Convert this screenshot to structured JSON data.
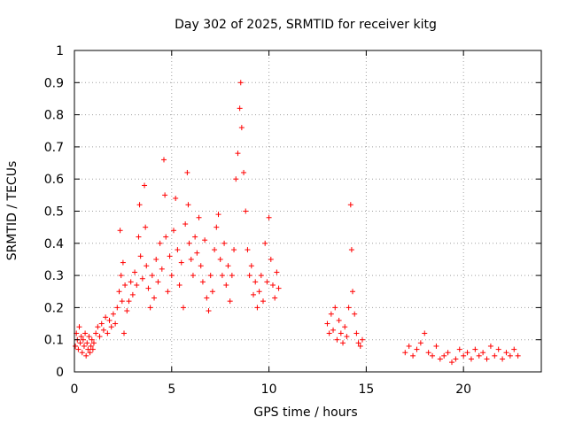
{
  "chart_data": {
    "type": "scatter",
    "title": "Day 302 of 2025, SRMTID for receiver kitg",
    "xlabel": "GPS time / hours",
    "ylabel": "SRMTID / TECUs",
    "xlim": [
      0,
      24
    ],
    "ylim": [
      0,
      1
    ],
    "xticks": [
      0,
      5,
      10,
      15,
      20
    ],
    "yticks": [
      0,
      0.1,
      0.2,
      0.3,
      0.4,
      0.5,
      0.6,
      0.7,
      0.8,
      0.9,
      1
    ],
    "xtick_labels": [
      "0",
      "5",
      "10",
      "15",
      "20"
    ],
    "ytick_labels": [
      "0",
      "0.1",
      "0.2",
      "0.3",
      "0.4",
      "0.5",
      "0.6",
      "0.7",
      "0.8",
      "0.9",
      "1"
    ],
    "grid": true,
    "marker_color": "#ff0000",
    "series": [
      {
        "name": "SRMTID",
        "points": [
          [
            0.05,
            0.08
          ],
          [
            0.1,
            0.12
          ],
          [
            0.15,
            0.1
          ],
          [
            0.2,
            0.07
          ],
          [
            0.25,
            0.14
          ],
          [
            0.3,
            0.09
          ],
          [
            0.35,
            0.11
          ],
          [
            0.4,
            0.06
          ],
          [
            0.45,
            0.1
          ],
          [
            0.5,
            0.08
          ],
          [
            0.55,
            0.12
          ],
          [
            0.6,
            0.05
          ],
          [
            0.65,
            0.09
          ],
          [
            0.7,
            0.07
          ],
          [
            0.75,
            0.11
          ],
          [
            0.8,
            0.06
          ],
          [
            0.85,
            0.08
          ],
          [
            0.9,
            0.1
          ],
          [
            0.95,
            0.07
          ],
          [
            1.0,
            0.09
          ],
          [
            1.1,
            0.12
          ],
          [
            1.2,
            0.14
          ],
          [
            1.3,
            0.11
          ],
          [
            1.4,
            0.15
          ],
          [
            1.5,
            0.13
          ],
          [
            1.6,
            0.17
          ],
          [
            1.7,
            0.12
          ],
          [
            1.8,
            0.16
          ],
          [
            1.9,
            0.14
          ],
          [
            2.0,
            0.18
          ],
          [
            2.1,
            0.15
          ],
          [
            2.2,
            0.2
          ],
          [
            2.3,
            0.25
          ],
          [
            2.35,
            0.44
          ],
          [
            2.4,
            0.3
          ],
          [
            2.45,
            0.22
          ],
          [
            2.5,
            0.34
          ],
          [
            2.55,
            0.12
          ],
          [
            2.6,
            0.27
          ],
          [
            2.7,
            0.19
          ],
          [
            2.8,
            0.22
          ],
          [
            2.9,
            0.28
          ],
          [
            3.0,
            0.24
          ],
          [
            3.1,
            0.31
          ],
          [
            3.2,
            0.27
          ],
          [
            3.3,
            0.42
          ],
          [
            3.35,
            0.52
          ],
          [
            3.4,
            0.36
          ],
          [
            3.5,
            0.29
          ],
          [
            3.6,
            0.58
          ],
          [
            3.65,
            0.45
          ],
          [
            3.7,
            0.33
          ],
          [
            3.8,
            0.26
          ],
          [
            3.9,
            0.2
          ],
          [
            4.0,
            0.3
          ],
          [
            4.1,
            0.23
          ],
          [
            4.2,
            0.35
          ],
          [
            4.3,
            0.28
          ],
          [
            4.4,
            0.4
          ],
          [
            4.5,
            0.32
          ],
          [
            4.6,
            0.66
          ],
          [
            4.65,
            0.55
          ],
          [
            4.7,
            0.42
          ],
          [
            4.8,
            0.25
          ],
          [
            4.9,
            0.36
          ],
          [
            5.0,
            0.3
          ],
          [
            5.1,
            0.44
          ],
          [
            5.2,
            0.54
          ],
          [
            5.3,
            0.38
          ],
          [
            5.4,
            0.27
          ],
          [
            5.5,
            0.34
          ],
          [
            5.6,
            0.2
          ],
          [
            5.7,
            0.46
          ],
          [
            5.8,
            0.62
          ],
          [
            5.85,
            0.52
          ],
          [
            5.9,
            0.4
          ],
          [
            6.0,
            0.35
          ],
          [
            6.1,
            0.3
          ],
          [
            6.2,
            0.42
          ],
          [
            6.3,
            0.37
          ],
          [
            6.4,
            0.48
          ],
          [
            6.5,
            0.33
          ],
          [
            6.6,
            0.28
          ],
          [
            6.7,
            0.41
          ],
          [
            6.8,
            0.23
          ],
          [
            6.9,
            0.19
          ],
          [
            7.0,
            0.3
          ],
          [
            7.1,
            0.25
          ],
          [
            7.2,
            0.38
          ],
          [
            7.3,
            0.45
          ],
          [
            7.4,
            0.49
          ],
          [
            7.5,
            0.35
          ],
          [
            7.6,
            0.3
          ],
          [
            7.7,
            0.4
          ],
          [
            7.8,
            0.27
          ],
          [
            7.9,
            0.33
          ],
          [
            8.0,
            0.22
          ],
          [
            8.1,
            0.3
          ],
          [
            8.2,
            0.38
          ],
          [
            8.3,
            0.6
          ],
          [
            8.4,
            0.68
          ],
          [
            8.5,
            0.82
          ],
          [
            8.55,
            0.9
          ],
          [
            8.6,
            0.76
          ],
          [
            8.7,
            0.62
          ],
          [
            8.8,
            0.5
          ],
          [
            8.9,
            0.38
          ],
          [
            9.0,
            0.3
          ],
          [
            9.1,
            0.33
          ],
          [
            9.2,
            0.24
          ],
          [
            9.3,
            0.28
          ],
          [
            9.4,
            0.2
          ],
          [
            9.5,
            0.25
          ],
          [
            9.6,
            0.3
          ],
          [
            9.7,
            0.22
          ],
          [
            9.8,
            0.4
          ],
          [
            9.9,
            0.28
          ],
          [
            10.0,
            0.48
          ],
          [
            10.1,
            0.35
          ],
          [
            10.2,
            0.27
          ],
          [
            10.3,
            0.23
          ],
          [
            10.4,
            0.31
          ],
          [
            10.5,
            0.26
          ],
          [
            13.0,
            0.15
          ],
          [
            13.1,
            0.12
          ],
          [
            13.2,
            0.18
          ],
          [
            13.3,
            0.13
          ],
          [
            13.4,
            0.2
          ],
          [
            13.5,
            0.1
          ],
          [
            13.6,
            0.16
          ],
          [
            13.7,
            0.12
          ],
          [
            13.8,
            0.09
          ],
          [
            13.9,
            0.14
          ],
          [
            14.0,
            0.11
          ],
          [
            14.1,
            0.2
          ],
          [
            14.2,
            0.52
          ],
          [
            14.25,
            0.38
          ],
          [
            14.3,
            0.25
          ],
          [
            14.4,
            0.18
          ],
          [
            14.5,
            0.12
          ],
          [
            14.6,
            0.09
          ],
          [
            14.7,
            0.08
          ],
          [
            14.8,
            0.1
          ],
          [
            17.0,
            0.06
          ],
          [
            17.2,
            0.08
          ],
          [
            17.4,
            0.05
          ],
          [
            17.6,
            0.07
          ],
          [
            17.8,
            0.09
          ],
          [
            18.0,
            0.12
          ],
          [
            18.2,
            0.06
          ],
          [
            18.4,
            0.05
          ],
          [
            18.6,
            0.08
          ],
          [
            18.8,
            0.04
          ],
          [
            19.0,
            0.05
          ],
          [
            19.2,
            0.06
          ],
          [
            19.4,
            0.03
          ],
          [
            19.6,
            0.04
          ],
          [
            19.8,
            0.07
          ],
          [
            20.0,
            0.05
          ],
          [
            20.2,
            0.06
          ],
          [
            20.4,
            0.04
          ],
          [
            20.6,
            0.07
          ],
          [
            20.8,
            0.05
          ],
          [
            21.0,
            0.06
          ],
          [
            21.2,
            0.04
          ],
          [
            21.4,
            0.08
          ],
          [
            21.6,
            0.05
          ],
          [
            21.8,
            0.07
          ],
          [
            22.0,
            0.04
          ],
          [
            22.2,
            0.06
          ],
          [
            22.4,
            0.05
          ],
          [
            22.6,
            0.07
          ],
          [
            22.8,
            0.05
          ]
        ]
      }
    ]
  }
}
